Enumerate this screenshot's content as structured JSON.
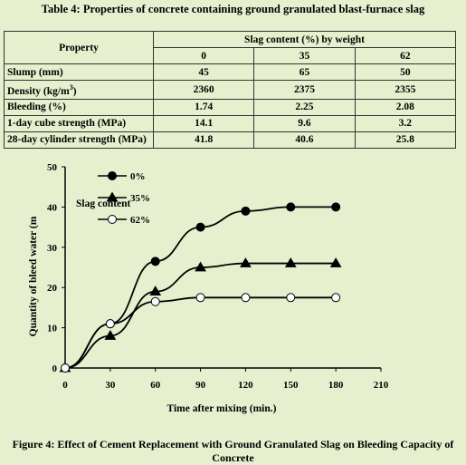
{
  "table": {
    "title": "Table 4: Properties of concrete containing ground granulated blast-furnace slag",
    "property_header": "Property",
    "slag_header": "Slag content (%) by weight",
    "columns": [
      "0",
      "35",
      "62"
    ],
    "rows": [
      {
        "property": "Slump (mm)",
        "values": [
          "45",
          "65",
          "50"
        ]
      },
      {
        "property": "Density (kg/m",
        "sup": "3",
        "property_suffix": ")",
        "values": [
          "2360",
          "2375",
          "2355"
        ]
      },
      {
        "property": "Bleeding (%)",
        "values": [
          "1.74",
          "2.25",
          "2.08"
        ]
      },
      {
        "property": "1-day cube strength (MPa)",
        "values": [
          "14.1",
          "9.6",
          "3.2"
        ]
      },
      {
        "property": "28-day cylinder strength (MPa)",
        "values": [
          "41.8",
          "40.6",
          "25.8"
        ]
      }
    ]
  },
  "chart_data": {
    "type": "line",
    "title": "",
    "xlabel": "Time after mixing (min.)",
    "ylabel": "Quantity of bleed water (m",
    "xlim": [
      0,
      210
    ],
    "ylim": [
      0,
      50
    ],
    "xticks": [
      0,
      30,
      60,
      90,
      120,
      150,
      180,
      210
    ],
    "yticks": [
      0,
      10,
      20,
      30,
      40,
      50
    ],
    "legend_title": "Slag content",
    "legend_position": "top-left",
    "x": [
      0,
      30,
      60,
      90,
      120,
      150,
      180
    ],
    "series": [
      {
        "name": "0%",
        "marker": "circle-filled",
        "values": [
          0,
          11,
          26.5,
          35,
          39,
          40,
          40
        ]
      },
      {
        "name": "35%",
        "marker": "triangle-filled",
        "values": [
          0,
          8,
          19,
          25,
          26,
          26,
          26
        ]
      },
      {
        "name": "62%",
        "marker": "circle-open",
        "values": [
          0,
          11,
          16.5,
          17.5,
          17.5,
          17.5,
          17.5
        ]
      }
    ]
  },
  "caption": "Figure 4: Effect of Cement Replacement with Ground Granulated Slag on Bleeding Capacity of Concrete",
  "colors": {
    "background": "#e6f0cf",
    "ink": "#000000"
  }
}
